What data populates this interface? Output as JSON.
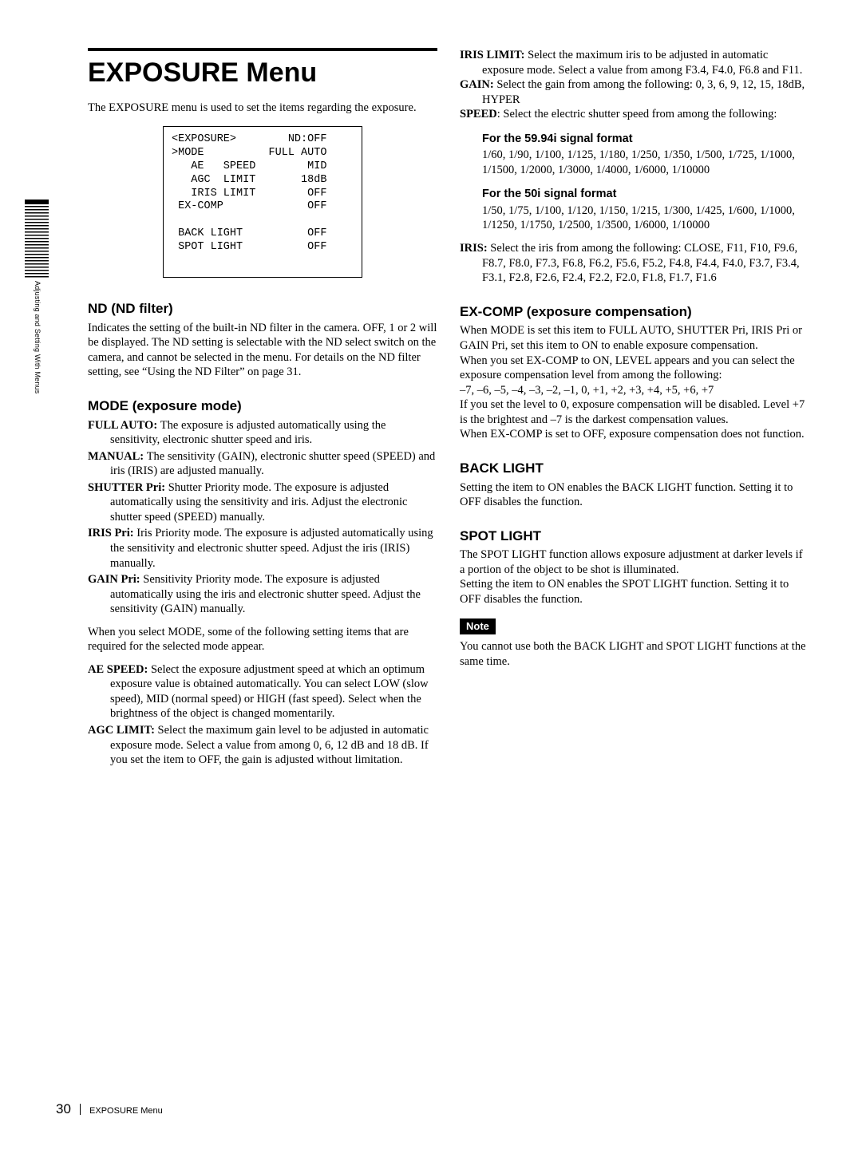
{
  "side": {
    "label": "Adjusting and Setting With Menus"
  },
  "title": "EXPOSURE Menu",
  "intro": "The EXPOSURE menu is used to set the items regarding the exposure.",
  "menu": {
    "lines": [
      "<EXPOSURE>        ND:OFF",
      ">MODE          FULL AUTO",
      "   AE   SPEED        MID",
      "   AGC  LIMIT       18dB",
      "   IRIS LIMIT        OFF",
      " EX-COMP             OFF",
      "",
      " BACK LIGHT          OFF",
      " SPOT LIGHT          OFF"
    ]
  },
  "nd": {
    "heading": "ND (ND filter)",
    "body": "Indicates the setting of the built-in ND filter in the camera. OFF, 1 or 2 will be displayed. The ND setting is selectable with the ND select switch on the camera, and cannot be selected in the menu. For details on the ND filter setting, see “Using the ND Filter” on page 31."
  },
  "mode": {
    "heading": "MODE (exposure mode)",
    "items": [
      {
        "lbl": "FULL AUTO:  ",
        "txt": "The exposure is adjusted automatically using the sensitivity, electronic shutter speed and iris."
      },
      {
        "lbl": "MANUAL:  ",
        "txt": "The sensitivity (GAIN), electronic shutter speed (SPEED) and iris (IRIS) are adjusted manually."
      },
      {
        "lbl": "SHUTTER Pri:  ",
        "txt": "Shutter Priority mode.  The exposure is adjusted automatically using the sensitivity and iris. Adjust the electronic shutter speed (SPEED) manually."
      },
      {
        "lbl": "IRIS Pri:  ",
        "txt": "Iris Priority mode.  The exposure is adjusted automatically using the sensitivity and electronic shutter speed. Adjust the iris (IRIS) manually."
      },
      {
        "lbl": "GAIN Pri: ",
        "txt": "Sensitivity Priority mode. The exposure is adjusted automatically using the iris and electronic shutter speed. Adjust the sensitivity (GAIN) manually."
      }
    ],
    "after": "When you select MODE, some of the following setting items that are required for the selected mode appear.",
    "sub": [
      {
        "lbl": "AE SPEED: ",
        "txt": "Select the exposure adjustment speed at which an optimum exposure value is obtained automatically. You can select LOW (slow speed), MID (normal speed) or HIGH (fast speed). Select when the brightness of the object is changed momentarily."
      },
      {
        "lbl": "AGC LIMIT: ",
        "txt": "Select the maximum gain level to be adjusted in automatic exposure mode. Select a value from among 0, 6, 12 dB and 18 dB. If you set the item to OFF, the gain is adjusted without limitation."
      }
    ]
  },
  "right": {
    "top": [
      {
        "lbl": "IRIS LIMIT: ",
        "txt": "Select the maximum iris to be adjusted in automatic exposure mode. Select a value from among  F3.4, F4.0, F6.8 and F11."
      },
      {
        "lbl": "GAIN: ",
        "txt": "Select the gain from among the following: 0, 3, 6, 9, 12, 15, 18dB, HYPER"
      },
      {
        "lbl": "SPEED",
        "txt": ": Select the electric shutter speed from among the following:"
      }
    ],
    "sig59": {
      "heading": "For the 59.94i signal format",
      "body": "1/60, 1/90, 1/100, 1/125, 1/180, 1/250, 1/350, 1/500, 1/725, 1/1000, 1/1500, 1/2000, 1/3000, 1/4000, 1/6000, 1/10000"
    },
    "sig50": {
      "heading": "For the 50i signal format",
      "body": "1/50, 1/75, 1/100, 1/120, 1/150, 1/215, 1/300, 1/425, 1/600, 1/1000, 1/1250, 1/1750, 1/2500, 1/3500, 1/6000, 1/10000"
    },
    "iris": {
      "lbl": "IRIS: ",
      "txt": "Select the iris from among the following: CLOSE, F11, F10, F9.6, F8.7, F8.0, F7.3, F6.8, F6.2, F5.6, F5.2, F4.8, F4.4, F4.0, F3.7, F3.4, F3.1, F2.8, F2.6, F2.4, F2.2, F2.0, F1.8, F1.7, F1.6"
    },
    "excomp": {
      "heading": "EX-COMP (exposure compensation)",
      "p1": "When MODE is set this item to FULL AUTO, SHUTTER Pri, IRIS Pri or GAIN Pri, set this item to ON to enable exposure compensation.",
      "p2": "When you set EX-COMP to ON, LEVEL appears and you can select the exposure compensation level from among the following:",
      "p3": "–7, –6, –5, –4, –3, –2, –1, 0, +1, +2, +3, +4, +5, +6, +7",
      "p4": "If you set the level to 0, exposure compensation will be disabled. Level +7 is the brightest and –7 is the darkest compensation values.",
      "p5": "When EX-COMP is set to OFF, exposure compensation does not function."
    },
    "backlight": {
      "heading": "BACK LIGHT",
      "body": "Setting the item to ON enables the BACK LIGHT function. Setting it to OFF disables the function."
    },
    "spotlight": {
      "heading": "SPOT LIGHT",
      "p1": "The SPOT LIGHT function allows exposure adjustment at darker levels if a portion of the object to be shot is illuminated.",
      "p2": "Setting the item to ON enables the SPOT LIGHT function. Setting it to OFF disables the function."
    },
    "note": {
      "tag": "Note",
      "body": "You cannot use both the BACK LIGHT and SPOT LIGHT functions at the same time."
    }
  },
  "footer": {
    "page": "30",
    "title": "EXPOSURE Menu"
  }
}
